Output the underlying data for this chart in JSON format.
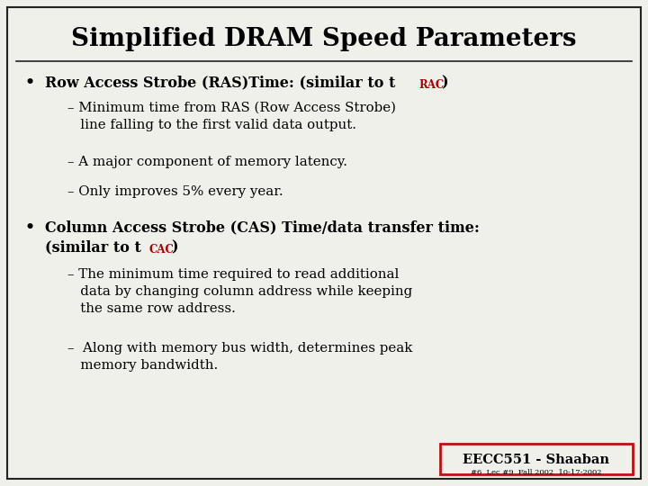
{
  "title": "Simplified DRAM Speed Parameters",
  "title_fontsize": 20,
  "bg_color": "#f0f0eb",
  "border_color": "#222222",
  "text_color": "#000000",
  "red_color": "#aa0000",
  "footer_main": "EECC551 - Shaaban",
  "footer_small": "#6  Lec #9  Fall 2002  10-17-2002",
  "footer_box_color": "#bb1111",
  "body_font": "serif",
  "body_fontsize": 11.5,
  "sub_fontsize": 10.8,
  "title_fontweight": "bold"
}
